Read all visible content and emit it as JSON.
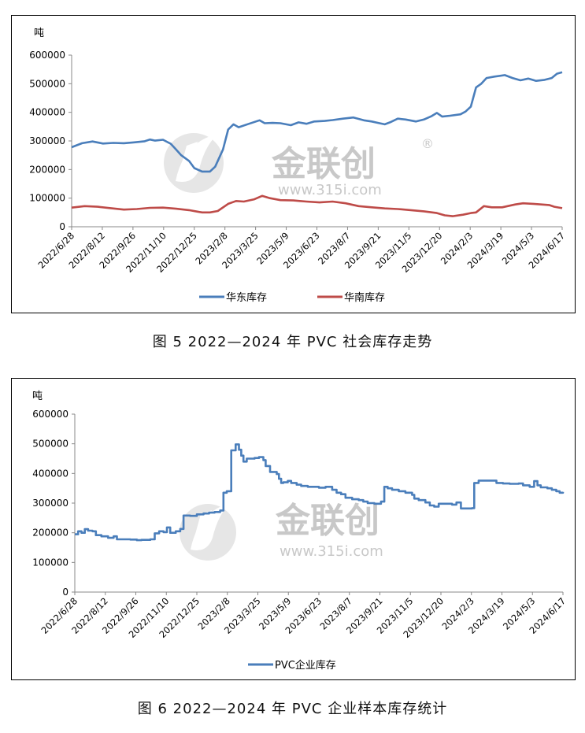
{
  "figures": [
    {
      "caption": "图 5  2022—2024 年 PVC 社会库存走势"
    },
    {
      "caption": "图 6  2022—2024 年 PVC 企业样本库存统计"
    }
  ],
  "watermark": {
    "brand": "金联创",
    "registered": "®",
    "url": "www.315i.com"
  },
  "chart_data": [
    {
      "type": "line",
      "unit_label": "吨",
      "ylim": [
        0,
        600000
      ],
      "yticks": [
        "0",
        "100000",
        "200000",
        "300000",
        "400000",
        "500000",
        "600000"
      ],
      "xticks": [
        "2022/6/28",
        "2022/8/12",
        "2022/9/26",
        "2022/11/10",
        "2022/12/25",
        "2023/2/8",
        "2023/3/25",
        "2023/5/9",
        "2023/6/23",
        "2023/8/7",
        "2023/9/21",
        "2023/11/5",
        "2023/12/20",
        "2024/2/3",
        "2024/3/19",
        "2024/5/3",
        "2024/6/17"
      ],
      "legend_position": "bottom",
      "grid": false,
      "series": [
        {
          "name": "华东库存",
          "color": "#4a7ebb",
          "points": [
            [
              0,
              278000
            ],
            [
              0.4,
              292000
            ],
            [
              0.8,
              298000
            ],
            [
              1.2,
              291000
            ],
            [
              1.6,
              293000
            ],
            [
              2.0,
              292000
            ],
            [
              2.4,
              295000
            ],
            [
              2.8,
              299000
            ],
            [
              3.0,
              305000
            ],
            [
              3.2,
              301000
            ],
            [
              3.5,
              304000
            ],
            [
              3.8,
              290000
            ],
            [
              4.0,
              270000
            ],
            [
              4.2,
              250000
            ],
            [
              4.5,
              230000
            ],
            [
              4.7,
              205000
            ],
            [
              5.0,
              193000
            ],
            [
              5.3,
              193000
            ],
            [
              5.5,
              210000
            ],
            [
              5.8,
              270000
            ],
            [
              6.0,
              340000
            ],
            [
              6.2,
              358000
            ],
            [
              6.4,
              348000
            ],
            [
              6.8,
              360000
            ],
            [
              7.2,
              372000
            ],
            [
              7.4,
              362000
            ],
            [
              7.7,
              363000
            ],
            [
              8.0,
              362000
            ],
            [
              8.4,
              355000
            ],
            [
              8.7,
              365000
            ],
            [
              9.0,
              360000
            ],
            [
              9.3,
              368000
            ],
            [
              9.7,
              370000
            ],
            [
              10.0,
              373000
            ],
            [
              10.4,
              378000
            ],
            [
              10.8,
              382000
            ],
            [
              11.2,
              372000
            ],
            [
              11.5,
              368000
            ],
            [
              11.8,
              362000
            ],
            [
              12.0,
              358000
            ],
            [
              12.2,
              365000
            ],
            [
              12.5,
              378000
            ],
            [
              12.8,
              375000
            ],
            [
              13.2,
              368000
            ],
            [
              13.5,
              375000
            ],
            [
              13.8,
              387000
            ],
            [
              14.0,
              398000
            ],
            [
              14.2,
              385000
            ],
            [
              14.5,
              388000
            ],
            [
              14.9,
              393000
            ],
            [
              15.1,
              403000
            ],
            [
              15.3,
              420000
            ],
            [
              15.5,
              487000
            ],
            [
              15.7,
              500000
            ],
            [
              15.9,
              520000
            ],
            [
              16.2,
              525000
            ],
            [
              16.6,
              530000
            ],
            [
              16.9,
              520000
            ],
            [
              17.2,
              512000
            ],
            [
              17.5,
              518000
            ],
            [
              17.8,
              510000
            ],
            [
              18.1,
              513000
            ],
            [
              18.4,
              520000
            ],
            [
              18.6,
              535000
            ],
            [
              18.8,
              540000
            ]
          ]
        },
        {
          "name": "华南库存",
          "color": "#be4b48",
          "points": [
            [
              0,
              67000
            ],
            [
              0.5,
              72000
            ],
            [
              1.0,
              70000
            ],
            [
              1.5,
              65000
            ],
            [
              2.0,
              60000
            ],
            [
              2.5,
              62000
            ],
            [
              3.0,
              66000
            ],
            [
              3.5,
              67000
            ],
            [
              4.0,
              63000
            ],
            [
              4.5,
              58000
            ],
            [
              4.8,
              53000
            ],
            [
              5.0,
              50000
            ],
            [
              5.3,
              50000
            ],
            [
              5.6,
              55000
            ],
            [
              6.0,
              80000
            ],
            [
              6.3,
              90000
            ],
            [
              6.6,
              88000
            ],
            [
              7.0,
              96000
            ],
            [
              7.3,
              108000
            ],
            [
              7.6,
              100000
            ],
            [
              8.0,
              93000
            ],
            [
              8.5,
              92000
            ],
            [
              9.0,
              88000
            ],
            [
              9.5,
              85000
            ],
            [
              10.0,
              88000
            ],
            [
              10.5,
              82000
            ],
            [
              11.0,
              72000
            ],
            [
              11.5,
              68000
            ],
            [
              12.0,
              64000
            ],
            [
              12.5,
              62000
            ],
            [
              13.0,
              58000
            ],
            [
              13.5,
              54000
            ],
            [
              14.0,
              48000
            ],
            [
              14.3,
              40000
            ],
            [
              14.6,
              37000
            ],
            [
              15.0,
              42000
            ],
            [
              15.3,
              48000
            ],
            [
              15.5,
              50000
            ],
            [
              15.8,
              72000
            ],
            [
              16.1,
              68000
            ],
            [
              16.5,
              68000
            ],
            [
              17.0,
              78000
            ],
            [
              17.3,
              82000
            ],
            [
              17.7,
              80000
            ],
            [
              18.0,
              78000
            ],
            [
              18.3,
              76000
            ],
            [
              18.5,
              70000
            ],
            [
              18.8,
              65000
            ]
          ]
        }
      ]
    },
    {
      "type": "line",
      "unit_label": "吨",
      "ylim": [
        0,
        600000
      ],
      "yticks": [
        "0",
        "100000",
        "200000",
        "300000",
        "400000",
        "500000",
        "600000"
      ],
      "xticks": [
        "2022/6/28",
        "2022/8/12",
        "2022/9/26",
        "2022/11/10",
        "2022/12/25",
        "2023/2/8",
        "2023/3/25",
        "2023/5/9",
        "2023/6/23",
        "2023/8/7",
        "2023/9/21",
        "2023/11/5",
        "2023/12/20",
        "2024/2/3",
        "2024/3/19",
        "2024/5/3",
        "2024/6/17"
      ],
      "legend_position": "bottom",
      "grid": false,
      "series": [
        {
          "name": "PVC企业库存",
          "color": "#4a7ebb",
          "step": true,
          "points": [
            [
              0,
              195000
            ],
            [
              0.15,
              205000
            ],
            [
              0.3,
              200000
            ],
            [
              0.45,
              212000
            ],
            [
              0.6,
              207000
            ],
            [
              0.8,
              205000
            ],
            [
              0.95,
              192000
            ],
            [
              1.2,
              188000
            ],
            [
              1.5,
              183000
            ],
            [
              1.75,
              188000
            ],
            [
              1.9,
              178000
            ],
            [
              2.2,
              178000
            ],
            [
              2.5,
              177000
            ],
            [
              2.8,
              175000
            ],
            [
              3.0,
              176000
            ],
            [
              3.4,
              178000
            ],
            [
              3.6,
              198000
            ],
            [
              3.8,
              205000
            ],
            [
              4.0,
              202000
            ],
            [
              4.15,
              218000
            ],
            [
              4.3,
              200000
            ],
            [
              4.55,
              205000
            ],
            [
              4.75,
              213000
            ],
            [
              4.9,
              258000
            ],
            [
              5.2,
              257000
            ],
            [
              5.5,
              262000
            ],
            [
              5.8,
              265000
            ],
            [
              6.05,
              268000
            ],
            [
              6.3,
              270000
            ],
            [
              6.55,
              275000
            ],
            [
              6.7,
              335000
            ],
            [
              6.85,
              340000
            ],
            [
              7.0,
              340000
            ],
            [
              7.05,
              478000
            ],
            [
              7.25,
              498000
            ],
            [
              7.4,
              480000
            ],
            [
              7.5,
              460000
            ],
            [
              7.6,
              440000
            ],
            [
              7.75,
              450000
            ],
            [
              8.1,
              452000
            ],
            [
              8.3,
              455000
            ],
            [
              8.5,
              445000
            ],
            [
              8.6,
              425000
            ],
            [
              8.8,
              405000
            ],
            [
              8.95,
              405000
            ],
            [
              9.1,
              398000
            ],
            [
              9.2,
              382000
            ],
            [
              9.3,
              368000
            ],
            [
              9.4,
              370000
            ],
            [
              9.6,
              375000
            ],
            [
              9.75,
              368000
            ],
            [
              10.0,
              362000
            ],
            [
              10.2,
              358000
            ],
            [
              10.5,
              355000
            ],
            [
              10.8,
              355000
            ],
            [
              11.0,
              352000
            ],
            [
              11.3,
              355000
            ],
            [
              11.6,
              345000
            ],
            [
              11.8,
              335000
            ],
            [
              12.0,
              330000
            ],
            [
              12.2,
              318000
            ],
            [
              12.5,
              313000
            ],
            [
              12.8,
              310000
            ],
            [
              13.0,
              305000
            ],
            [
              13.2,
              300000
            ],
            [
              13.5,
              298000
            ],
            [
              13.8,
              305000
            ],
            [
              13.95,
              355000
            ],
            [
              14.1,
              350000
            ],
            [
              14.3,
              345000
            ],
            [
              14.6,
              340000
            ],
            [
              14.9,
              335000
            ],
            [
              15.2,
              328000
            ],
            [
              15.3,
              315000
            ],
            [
              15.5,
              310000
            ],
            [
              15.8,
              302000
            ],
            [
              16.0,
              292000
            ],
            [
              16.2,
              288000
            ],
            [
              16.4,
              298000
            ],
            [
              16.7,
              298000
            ],
            [
              17.0,
              295000
            ],
            [
              17.2,
              302000
            ],
            [
              17.4,
              282000
            ],
            [
              17.6,
              282000
            ],
            [
              17.9,
              283000
            ],
            [
              18.0,
              368000
            ],
            [
              18.2,
              376000
            ],
            [
              18.5,
              376000
            ],
            [
              18.8,
              376000
            ],
            [
              19.0,
              368000
            ],
            [
              19.3,
              366000
            ],
            [
              19.6,
              365000
            ],
            [
              19.8,
              365000
            ],
            [
              20.0,
              366000
            ],
            [
              20.2,
              360000
            ],
            [
              20.5,
              355000
            ],
            [
              20.7,
              374000
            ],
            [
              20.85,
              360000
            ],
            [
              21.0,
              353000
            ],
            [
              21.3,
              350000
            ],
            [
              21.5,
              345000
            ],
            [
              21.7,
              340000
            ],
            [
              21.85,
              335000
            ],
            [
              22.0,
              338000
            ]
          ]
        }
      ]
    }
  ]
}
